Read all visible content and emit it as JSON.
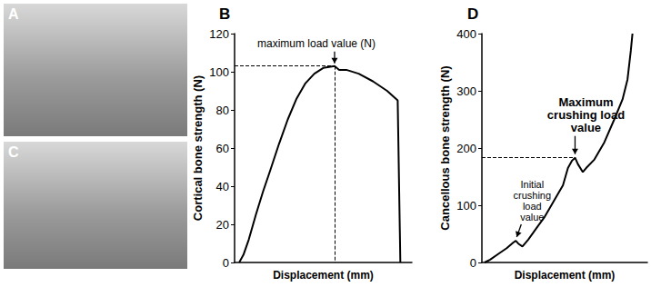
{
  "photos": [
    {
      "label": "A"
    },
    {
      "label": "C"
    }
  ],
  "chart_data": [
    {
      "type": "line",
      "title": "B",
      "x_label": "Displacement (mm)",
      "y_label": "Cortical bone strength (N)",
      "xlim": [
        0,
        1
      ],
      "ylim": [
        0,
        120
      ],
      "yticks": [
        0,
        20,
        40,
        60,
        80,
        100,
        120
      ],
      "tick_labels": "y",
      "grid": false,
      "color": "#000000",
      "x": [
        0.026,
        0.05,
        0.08,
        0.12,
        0.16,
        0.2,
        0.25,
        0.3,
        0.35,
        0.4,
        0.45,
        0.5,
        0.564,
        0.59,
        0.63,
        0.7,
        0.78,
        0.86,
        0.92,
        0.935
      ],
      "values": [
        0,
        4,
        12,
        25,
        37,
        48,
        62,
        75,
        86,
        94,
        99,
        102,
        103,
        101,
        101,
        99,
        95,
        90,
        85,
        0
      ],
      "annotations": [
        {
          "text": "maximum load value (N)",
          "x": 0.564,
          "y": 103
        }
      ]
    },
    {
      "type": "line",
      "title": "D",
      "x_label": "Displacement (mm)",
      "y_label": "Cancellous bone strength (N)",
      "xlim": [
        0,
        1
      ],
      "ylim": [
        0,
        400
      ],
      "yticks": [
        0,
        100,
        200,
        300,
        400
      ],
      "tick_labels": "y",
      "grid": false,
      "color": "#000000",
      "x": [
        0.016,
        0.05,
        0.1,
        0.15,
        0.19,
        0.205,
        0.22,
        0.245,
        0.28,
        0.33,
        0.38,
        0.42,
        0.45,
        0.49,
        0.52,
        0.545,
        0.563,
        0.58,
        0.61,
        0.63,
        0.68,
        0.74,
        0.8,
        0.85,
        0.88,
        0.9,
        0.91
      ],
      "values": [
        0,
        5,
        15,
        25,
        35,
        38,
        33,
        28,
        40,
        60,
        80,
        100,
        115,
        135,
        165,
        178,
        183,
        172,
        158,
        165,
        180,
        210,
        250,
        285,
        320,
        370,
        400
      ],
      "annotations": [
        {
          "text": "Initial\ncrushing\nload\nvalue",
          "x": 0.205,
          "y": 38
        },
        {
          "text": "Maximum\ncrushing load\nvalue",
          "x": 0.563,
          "y": 183
        }
      ]
    }
  ]
}
